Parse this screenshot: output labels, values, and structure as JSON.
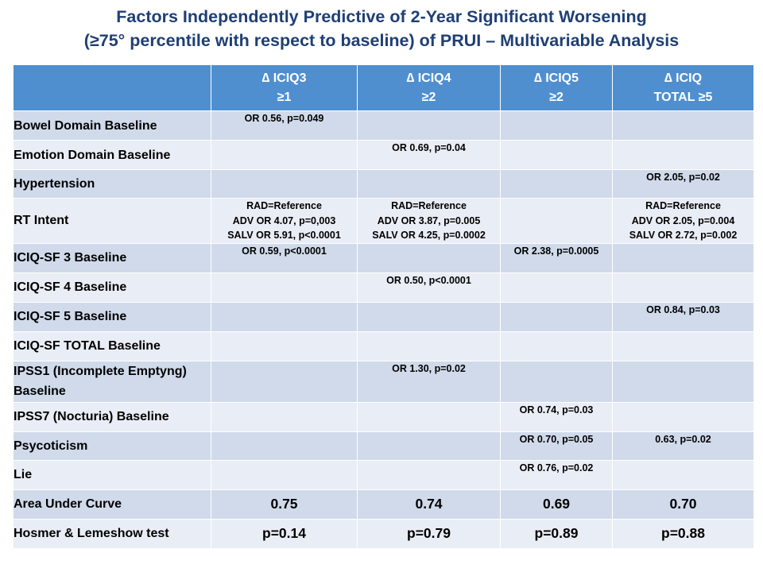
{
  "title": {
    "line1": "Factors Independently Predictive of 2-Year Significant Worsening",
    "line2": "(≥75° percentile with respect to baseline) of PRUI – Multivariable Analysis"
  },
  "table": {
    "headers": [
      {
        "line1": "",
        "line2": ""
      },
      {
        "line1": "∆ ICIQ3",
        "line2": "≥1"
      },
      {
        "line1": "∆ ICIQ4",
        "line2": "≥2"
      },
      {
        "line1": "∆ ICIQ5",
        "line2": "≥2"
      },
      {
        "line1": "∆ ICIQ",
        "line2": "TOTAL ≥5"
      }
    ],
    "rows": [
      {
        "label": "Bowel Domain Baseline",
        "cells": [
          [
            "OR 0.56, p=0.049"
          ],
          [],
          [],
          []
        ]
      },
      {
        "label": "Emotion Domain Baseline",
        "cells": [
          [],
          [
            "OR 0.69, p=0.04"
          ],
          [],
          []
        ]
      },
      {
        "label": "Hypertension",
        "cells": [
          [],
          [],
          [],
          [
            "OR 2.05, p=0.02"
          ]
        ]
      },
      {
        "label": "RT Intent",
        "cells": [
          [
            "RAD=Reference",
            "ADV OR 4.07, p=0,003",
            "SALV OR 5.91, p<0.0001"
          ],
          [
            "RAD=Reference",
            "ADV OR 3.87, p=0.005",
            "SALV OR 4.25, p=0.0002"
          ],
          [],
          [
            "RAD=Reference",
            "ADV OR 2.05, p=0.004",
            "SALV OR 2.72, p=0.002"
          ]
        ]
      },
      {
        "label": "ICIQ-SF 3 Baseline",
        "cells": [
          [
            "OR 0.59, p<0.0001"
          ],
          [],
          [
            "OR 2.38, p=0.0005"
          ],
          []
        ]
      },
      {
        "label": "ICIQ-SF 4 Baseline",
        "cells": [
          [],
          [
            "OR 0.50, p<0.0001"
          ],
          [],
          []
        ]
      },
      {
        "label": "ICIQ-SF 5 Baseline",
        "cells": [
          [],
          [],
          [],
          [
            "OR 0.84, p=0.03"
          ]
        ]
      },
      {
        "label": "ICIQ-SF TOTAL Baseline",
        "cells": [
          [],
          [],
          [],
          []
        ]
      },
      {
        "label": "IPSS1 (Incomplete Emptyng) Baseline",
        "cells": [
          [],
          [
            "OR 1.30, p=0.02"
          ],
          [],
          []
        ]
      },
      {
        "label": "IPSS7  (Nocturia) Baseline",
        "cells": [
          [],
          [],
          [
            "OR 0.74, p=0.03"
          ],
          []
        ]
      },
      {
        "label": "Psycoticism",
        "cells": [
          [],
          [],
          [
            "OR 0.70, p=0.05"
          ],
          [
            "0.63, p=0.02"
          ]
        ]
      },
      {
        "label": "Lie",
        "cells": [
          [],
          [],
          [
            "OR 0.76, p=0.02"
          ],
          []
        ]
      },
      {
        "label": "Area Under Curve",
        "cells": [
          [
            "0.75"
          ],
          [
            "0.74"
          ],
          [
            "0.69"
          ],
          [
            "0.70"
          ]
        ]
      },
      {
        "label": "Hosmer & Lemeshow test",
        "cells": [
          [
            "p=0.14"
          ],
          [
            "p=0.79"
          ],
          [
            "p=0.89"
          ],
          [
            "p=0.88"
          ]
        ]
      }
    ]
  },
  "colors": {
    "title": "#1f3f74",
    "header_bg": "#4f8fd0",
    "row_dark": "#d0daea",
    "row_light": "#e9edf5"
  }
}
